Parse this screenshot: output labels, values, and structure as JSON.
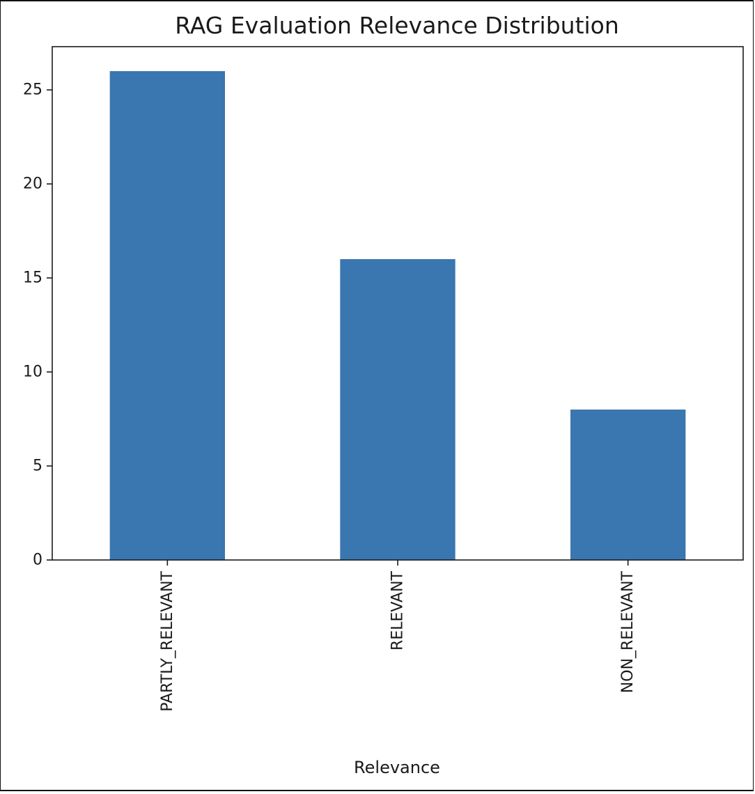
{
  "chart_data": {
    "type": "bar",
    "title": "RAG Evaluation Relevance Distribution",
    "xlabel": "Relevance",
    "ylabel": "",
    "categories": [
      "PARTLY_RELEVANT",
      "RELEVANT",
      "NON_RELEVANT"
    ],
    "values": [
      26,
      16,
      8
    ],
    "ylim": [
      0,
      27.3
    ],
    "yticks": [
      0,
      5,
      10,
      15,
      20,
      25
    ],
    "grid": false,
    "bar_color": "#3a76af",
    "axis_color": "#1a1a1a"
  }
}
